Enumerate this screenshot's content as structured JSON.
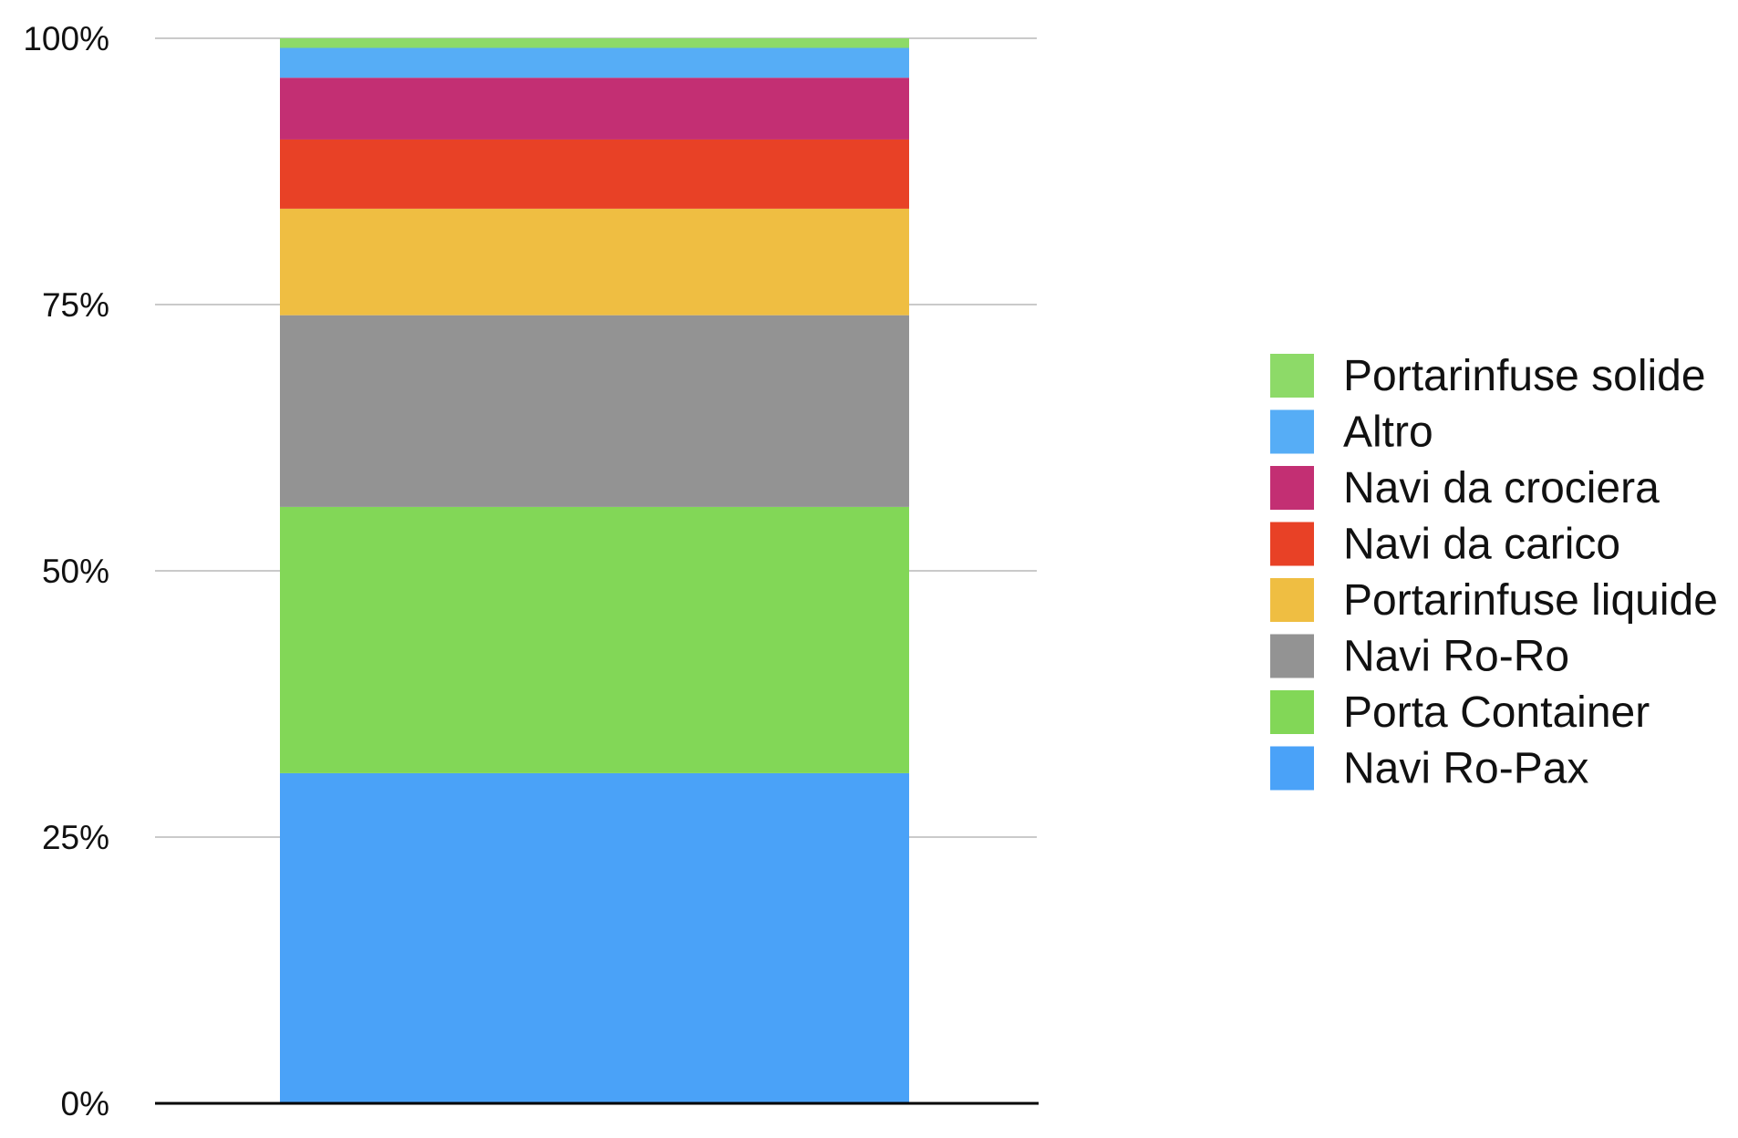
{
  "chart_data": {
    "type": "bar",
    "stacked": true,
    "normalized": true,
    "categories": [
      ""
    ],
    "ylim": [
      0,
      100
    ],
    "y_ticks": [
      "0%",
      "25%",
      "50%",
      "75%",
      "100%"
    ],
    "y_tick_values": [
      0,
      25,
      50,
      75,
      100
    ],
    "grid": true,
    "legend_position": "right",
    "series": [
      {
        "name": "Navi Ro-Pax",
        "values": [
          31
        ],
        "color": "#4aa2f8"
      },
      {
        "name": "Porta Container",
        "values": [
          25
        ],
        "color": "#82d757"
      },
      {
        "name": "Navi Ro-Ro",
        "values": [
          18
        ],
        "color": "#939393"
      },
      {
        "name": "Portarinfuse liquide",
        "values": [
          10
        ],
        "color": "#efbe42"
      },
      {
        "name": "Navi da carico",
        "values": [
          6.5
        ],
        "color": "#e84126"
      },
      {
        "name": "Navi da crociera",
        "values": [
          5.8
        ],
        "color": "#c32f73"
      },
      {
        "name": "Altro",
        "values": [
          2.8
        ],
        "color": "#56adf6"
      },
      {
        "name": "Portarinfuse solide",
        "values": [
          0.9
        ],
        "color": "#8dda68"
      }
    ]
  }
}
